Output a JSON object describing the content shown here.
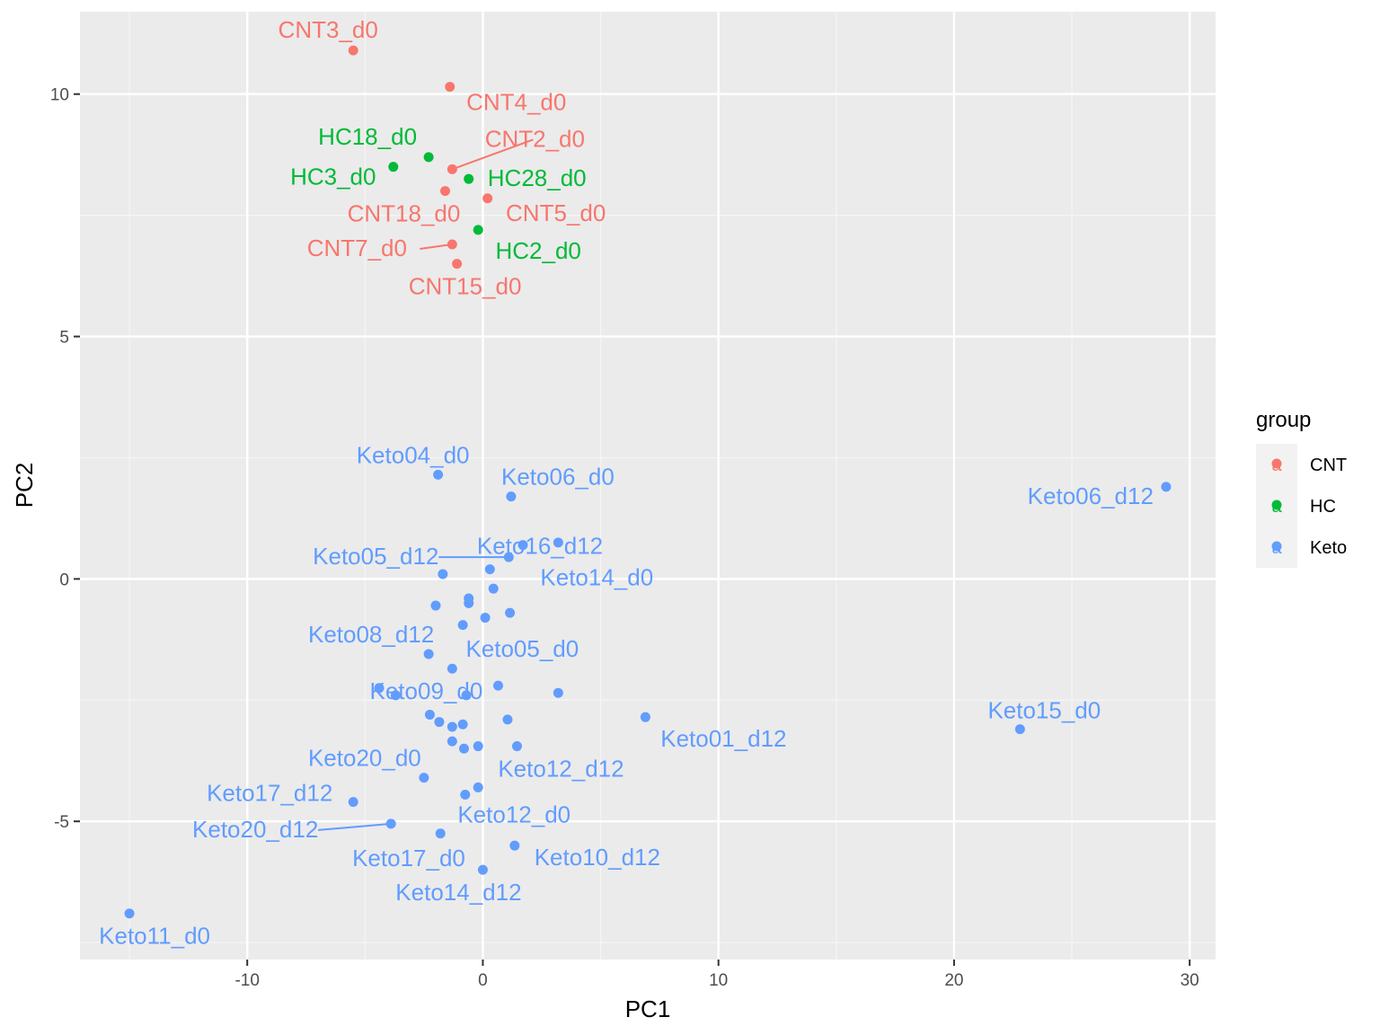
{
  "chart_data": {
    "type": "scatter",
    "title": "",
    "xlabel": "PC1",
    "ylabel": "PC2",
    "xlim": [
      -17.1,
      31.1
    ],
    "ylim": [
      -7.85,
      11.7
    ],
    "x_ticks": [
      -10,
      0,
      10,
      20,
      30
    ],
    "y_ticks": [
      -5,
      0,
      5,
      10
    ],
    "x_tick_labels": [
      "-10",
      "0",
      "10",
      "20",
      "30"
    ],
    "y_tick_labels": [
      "-5",
      "0",
      "5",
      "10"
    ],
    "grid": true,
    "legend": {
      "title": "group",
      "position": "right",
      "entries": [
        {
          "name": "CNT",
          "color": "#F8766D"
        },
        {
          "name": "HC",
          "color": "#00BA38"
        },
        {
          "name": "Keto",
          "color": "#619CFF"
        }
      ],
      "key_glyph_text": "a"
    },
    "colors": {
      "panel_background": "#EBEBEB",
      "grid_major": "#FFFFFF",
      "grid_minor": "#F5F5F5",
      "CNT": "#F8766D",
      "HC": "#00BA38",
      "Keto": "#619CFF"
    },
    "series": [
      {
        "name": "CNT",
        "points": [
          {
            "x": -5.5,
            "y": 10.9,
            "label": "CNT3_d0"
          },
          {
            "x": -1.4,
            "y": 10.15,
            "label": "CNT4_d0"
          },
          {
            "x": -1.3,
            "y": 8.45,
            "label": "CNT2_d0"
          },
          {
            "x": -1.6,
            "y": 8.0,
            "label": "CNT18_d0"
          },
          {
            "x": 0.2,
            "y": 7.85,
            "label": "CNT5_d0"
          },
          {
            "x": -1.3,
            "y": 6.9,
            "label": "CNT7_d0"
          },
          {
            "x": -1.1,
            "y": 6.5,
            "label": "CNT15_d0"
          }
        ]
      },
      {
        "name": "HC",
        "points": [
          {
            "x": -2.3,
            "y": 8.7,
            "label": "HC18_d0"
          },
          {
            "x": -3.8,
            "y": 8.5,
            "label": "HC3_d0"
          },
          {
            "x": -0.6,
            "y": 8.25,
            "label": "HC28_d0"
          },
          {
            "x": -0.2,
            "y": 7.2,
            "label": "HC2_d0"
          }
        ]
      },
      {
        "name": "Keto",
        "points": [
          {
            "x": -1.9,
            "y": 2.15,
            "label": "Keto04_d0"
          },
          {
            "x": 1.2,
            "y": 1.7,
            "label": "Keto06_d0"
          },
          {
            "x": 29.0,
            "y": 1.9,
            "label": "Keto06_d12"
          },
          {
            "x": 1.7,
            "y": 0.7,
            "label": "Keto16_d12"
          },
          {
            "x": 3.2,
            "y": 0.75,
            "label": ""
          },
          {
            "x": 1.1,
            "y": 0.45,
            "label": "Keto05_d12"
          },
          {
            "x": -1.7,
            "y": 0.1,
            "label": ""
          },
          {
            "x": 0.3,
            "y": 0.2,
            "label": "Keto14_d0"
          },
          {
            "x": 0.45,
            "y": -0.2,
            "label": ""
          },
          {
            "x": -0.6,
            "y": -0.4,
            "label": ""
          },
          {
            "x": -0.6,
            "y": -0.5,
            "label": ""
          },
          {
            "x": -2.0,
            "y": -0.55,
            "label": ""
          },
          {
            "x": 1.15,
            "y": -0.7,
            "label": ""
          },
          {
            "x": 0.1,
            "y": -0.8,
            "label": ""
          },
          {
            "x": -0.85,
            "y": -0.95,
            "label": ""
          },
          {
            "x": -2.3,
            "y": -1.55,
            "label": "Keto08_d12"
          },
          {
            "x": -1.3,
            "y": -1.85,
            "label": "Keto05_d0"
          },
          {
            "x": -4.4,
            "y": -2.25,
            "label": ""
          },
          {
            "x": 0.65,
            "y": -2.2,
            "label": ""
          },
          {
            "x": 3.2,
            "y": -2.35,
            "label": ""
          },
          {
            "x": -3.7,
            "y": -2.4,
            "label": "Keto09_d0"
          },
          {
            "x": -0.7,
            "y": -2.4,
            "label": ""
          },
          {
            "x": 6.9,
            "y": -2.85,
            "label": "Keto01_d12"
          },
          {
            "x": 22.8,
            "y": -3.1,
            "label": "Keto15_d0"
          },
          {
            "x": -2.25,
            "y": -2.8,
            "label": ""
          },
          {
            "x": 1.05,
            "y": -2.9,
            "label": ""
          },
          {
            "x": -1.85,
            "y": -2.95,
            "label": ""
          },
          {
            "x": -1.3,
            "y": -3.05,
            "label": ""
          },
          {
            "x": -0.85,
            "y": -3.0,
            "label": ""
          },
          {
            "x": -1.3,
            "y": -3.35,
            "label": ""
          },
          {
            "x": -0.2,
            "y": -3.45,
            "label": ""
          },
          {
            "x": -0.8,
            "y": -3.5,
            "label": ""
          },
          {
            "x": 1.45,
            "y": -3.45,
            "label": "Keto12_d12"
          },
          {
            "x": -2.5,
            "y": -4.1,
            "label": "Keto20_d0"
          },
          {
            "x": -0.2,
            "y": -4.3,
            "label": ""
          },
          {
            "x": -0.75,
            "y": -4.45,
            "label": ""
          },
          {
            "x": -5.5,
            "y": -4.6,
            "label": "Keto17_d12"
          },
          {
            "x": -3.9,
            "y": -5.05,
            "label": "Keto20_d12"
          },
          {
            "x": -1.8,
            "y": -5.25,
            "label": "Keto12_d0"
          },
          {
            "x": 1.35,
            "y": -5.5,
            "label": "Keto10_d12"
          },
          {
            "x": 0.0,
            "y": -6.0,
            "label": "Keto14_d12"
          },
          {
            "x": -15.0,
            "y": -6.9,
            "label": "Keto11_d0"
          }
        ]
      }
    ],
    "annotations": [
      "CNT3_d0",
      "CNT4_d0",
      "HC18_d0",
      "CNT2_d0",
      "HC3_d0",
      "HC28_d0",
      "CNT18_d0",
      "CNT5_d0",
      "CNT7_d0",
      "HC2_d0",
      "CNT15_d0",
      "Keto04_d0",
      "Keto06_d0",
      "Keto06_d12",
      "Keto16_d12",
      "Keto05_d12",
      "Keto14_d0",
      "Keto08_d12",
      "Keto05_d0",
      "Keto09_d0",
      "Keto15_d0",
      "Keto01_d12",
      "Keto20_d0",
      "Keto12_d12",
      "Keto17_d12",
      "Keto12_d0",
      "Keto20_d12",
      "Keto17_d0",
      "Keto10_d12",
      "Keto14_d12",
      "Keto11_d0"
    ],
    "unpositioned_labels": [
      "Keto17_d0"
    ]
  }
}
